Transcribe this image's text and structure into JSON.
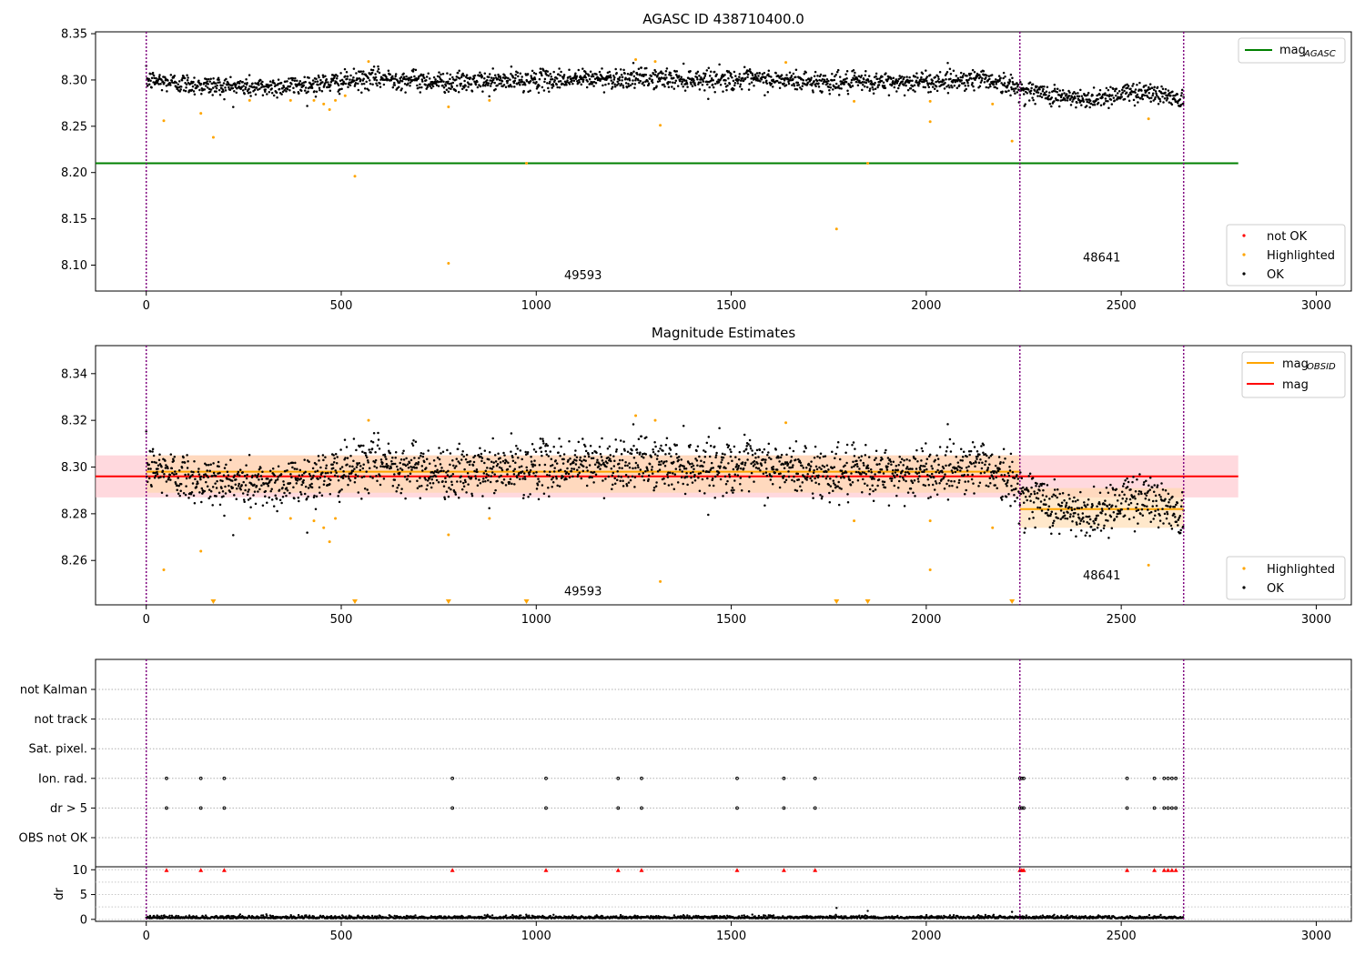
{
  "colors": {
    "ok": "#000000",
    "highlighted": "#ffa500",
    "not_ok": "#ff0000",
    "agasc_line": "#008000",
    "mag_line": "#ff0000",
    "mag_obsid_line": "#ffa500",
    "obs_boundary": "#800080",
    "red_band": "#ffc0c8",
    "orange_band": "#ffd8a8"
  },
  "chart_data": [
    {
      "type": "scatter",
      "title": "AGASC ID 438710400.0",
      "xlim": [
        -130,
        3090
      ],
      "ylim": [
        8.072,
        8.352
      ],
      "xticks": [
        0,
        500,
        1000,
        1500,
        2000,
        2500,
        3000
      ],
      "yticks": [
        8.1,
        8.15,
        8.2,
        8.25,
        8.3,
        8.35
      ],
      "ytick_labels": [
        "8.10",
        "8.15",
        "8.20",
        "8.25",
        "8.30",
        "8.35"
      ],
      "obs_boundaries": [
        0,
        2240,
        2660
      ],
      "obs_annotations": [
        {
          "text": "49593",
          "x": 1120,
          "y": 8.085
        },
        {
          "text": "48641",
          "x": 2450,
          "y": 8.104
        }
      ],
      "lines": [
        {
          "name": "magAGASC",
          "y": 8.21,
          "x": [
            -130,
            2800
          ],
          "color": "#008000"
        }
      ],
      "legend_top": {
        "location": "top-right",
        "entries": [
          {
            "label": "mag",
            "sub": "AGASC"
          }
        ]
      },
      "legend_bottom": {
        "location": "bottom-right",
        "entries": [
          "not OK",
          "Highlighted",
          "OK"
        ]
      },
      "ok_trend": [
        [
          0,
          8.3
        ],
        [
          150,
          8.294
        ],
        [
          300,
          8.292
        ],
        [
          450,
          8.296
        ],
        [
          600,
          8.302
        ],
        [
          800,
          8.297
        ],
        [
          1000,
          8.3
        ],
        [
          1200,
          8.302
        ],
        [
          1400,
          8.301
        ],
        [
          1600,
          8.3
        ],
        [
          1800,
          8.297
        ],
        [
          2000,
          8.298
        ],
        [
          2150,
          8.302
        ],
        [
          2240,
          8.29
        ],
        [
          2400,
          8.278
        ],
        [
          2480,
          8.284
        ],
        [
          2550,
          8.288
        ],
        [
          2660,
          8.28
        ]
      ],
      "highlighted_points": [
        [
          45,
          8.256
        ],
        [
          140,
          8.264
        ],
        [
          172,
          8.238
        ],
        [
          265,
          8.278
        ],
        [
          370,
          8.278
        ],
        [
          430,
          8.278
        ],
        [
          455,
          8.274
        ],
        [
          470,
          8.268
        ],
        [
          485,
          8.278
        ],
        [
          510,
          8.283
        ],
        [
          535,
          8.196
        ],
        [
          570,
          8.32
        ],
        [
          775,
          8.271
        ],
        [
          775,
          8.102
        ],
        [
          880,
          8.278
        ],
        [
          975,
          8.21
        ],
        [
          1255,
          8.322
        ],
        [
          1305,
          8.32
        ],
        [
          1318,
          8.251
        ],
        [
          1640,
          8.319
        ],
        [
          1770,
          8.139
        ],
        [
          1815,
          8.277
        ],
        [
          1850,
          8.21
        ],
        [
          2010,
          8.277
        ],
        [
          2010,
          8.255
        ],
        [
          2170,
          8.274
        ],
        [
          2220,
          8.234
        ],
        [
          2570,
          8.258
        ]
      ]
    },
    {
      "type": "scatter",
      "title": "Magnitude Estimates",
      "xlim": [
        -130,
        3090
      ],
      "ylim": [
        8.241,
        8.352
      ],
      "xticks": [
        0,
        500,
        1000,
        1500,
        2000,
        2500,
        3000
      ],
      "yticks": [
        8.26,
        8.28,
        8.3,
        8.32,
        8.34
      ],
      "ytick_labels": [
        "8.26",
        "8.28",
        "8.30",
        "8.32",
        "8.34"
      ],
      "obs_boundaries": [
        0,
        2240,
        2660
      ],
      "obs_annotations": [
        {
          "text": "49593",
          "x": 1120,
          "y": 8.245
        },
        {
          "text": "48641",
          "x": 2450,
          "y": 8.252
        }
      ],
      "lines": [
        {
          "name": "mag",
          "y": 8.296,
          "x": [
            -130,
            2800
          ],
          "color": "#ff0000",
          "band": [
            8.287,
            8.305
          ]
        },
        {
          "name": "magOBSID",
          "segments": [
            {
              "x": [
                0,
                2240
              ],
              "y": 8.298,
              "band": [
                8.289,
                8.305
              ]
            },
            {
              "x": [
                2240,
                2660
              ],
              "y": 8.282,
              "band": [
                8.274,
                8.291
              ]
            }
          ],
          "color": "#ffa500"
        }
      ],
      "legend_top": {
        "location": "top-right",
        "entries": [
          {
            "label": "mag",
            "sub": "OBSID"
          },
          {
            "label": "mag",
            "sub": ""
          }
        ]
      },
      "legend_bottom": {
        "location": "bottom-right",
        "entries": [
          "Highlighted",
          "OK"
        ]
      },
      "highlighted_points": [
        [
          45,
          8.256
        ],
        [
          140,
          8.264
        ],
        [
          265,
          8.278
        ],
        [
          370,
          8.278
        ],
        [
          430,
          8.277
        ],
        [
          455,
          8.274
        ],
        [
          470,
          8.268
        ],
        [
          485,
          8.278
        ],
        [
          570,
          8.32
        ],
        [
          775,
          8.271
        ],
        [
          880,
          8.278
        ],
        [
          1255,
          8.322
        ],
        [
          1305,
          8.32
        ],
        [
          1318,
          8.251
        ],
        [
          1640,
          8.319
        ],
        [
          1815,
          8.277
        ],
        [
          2010,
          8.277
        ],
        [
          2010,
          8.256
        ],
        [
          2170,
          8.274
        ],
        [
          2570,
          8.258
        ]
      ],
      "out_of_range_markers_x": [
        172,
        535,
        775,
        975,
        1770,
        1850,
        2220
      ]
    },
    {
      "type": "scatter",
      "subtype": "flags",
      "xlim": [
        -130,
        3090
      ],
      "xticks": [
        0,
        500,
        1000,
        1500,
        2000,
        2500,
        3000
      ],
      "flag_rows": [
        "not Kalman",
        "not track",
        "Sat. pixel.",
        "Ion. rad.",
        "dr > 5",
        "OBS not OK"
      ],
      "flag_points_x": {
        "Ion. rad.": [
          52,
          140,
          200,
          785,
          1025,
          1210,
          1270,
          1515,
          1635,
          1715,
          2240,
          2245,
          2250,
          2515,
          2585,
          2610,
          2620,
          2630,
          2640
        ],
        "dr > 5": [
          52,
          140,
          200,
          785,
          1025,
          1210,
          1270,
          1515,
          1635,
          1715,
          2240,
          2245,
          2250,
          2515,
          2585,
          2610,
          2620,
          2630,
          2640
        ]
      },
      "dr_panel": {
        "ylabel": "dr",
        "ylim": [
          -0.4,
          10.6
        ],
        "yticks": [
          0,
          5,
          10
        ],
        "ytick_labels": [
          "0",
          "5",
          "10"
        ],
        "clipped_x": [
          52,
          140,
          200,
          785,
          1025,
          1210,
          1270,
          1515,
          1635,
          1715,
          2240,
          2245,
          2250,
          2515,
          2585,
          2610,
          2620,
          2630,
          2640
        ],
        "outliers": [
          [
            1770,
            2.3
          ],
          [
            1850,
            1.7
          ],
          [
            2220,
            1.5
          ]
        ]
      },
      "obs_boundaries": [
        0,
        2240,
        2660
      ]
    }
  ]
}
